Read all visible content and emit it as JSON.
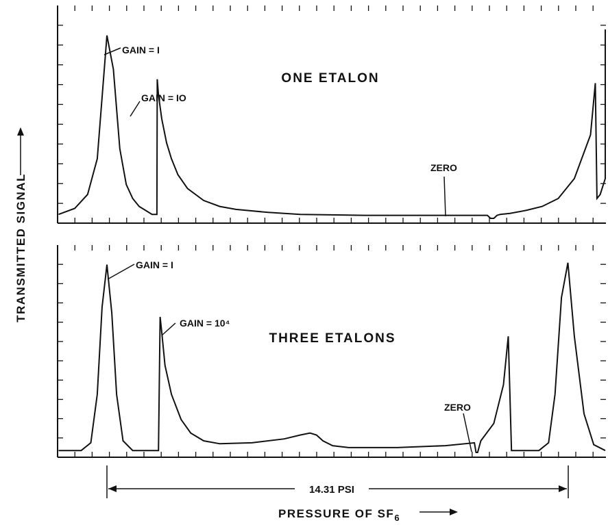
{
  "figure": {
    "ylabel": "TRANSMITTED SIGNAL",
    "xlabel_main": "PRESSURE OF SF",
    "xlabel_sub": "6",
    "span_label": "14.31 PSI"
  },
  "chart_data": [
    {
      "type": "line",
      "title": "ONE ETALON",
      "xlabel": "PRESSURE OF SF6",
      "ylabel": "TRANSMITTED SIGNAL",
      "x_unit": "PSI",
      "xlim": [
        -1.5,
        15.8
      ],
      "ylim": [
        0,
        1.05
      ],
      "grid": false,
      "annotations": [
        {
          "text": "GAIN = I",
          "x": 1.6,
          "y": 0.92
        },
        {
          "text": "GAIN = IO",
          "x": 2.6,
          "y": 0.67
        },
        {
          "text": "ZERO",
          "x": 12.0,
          "y": 0.27
        }
      ],
      "series": [
        {
          "x": [
            -1.5,
            -1.0,
            -0.6,
            -0.3,
            0.0,
            0.2,
            0.4,
            0.6,
            0.8,
            1.0,
            1.2,
            1.4,
            1.55,
            1.56,
            1.6,
            1.7,
            1.85,
            2.0,
            2.2,
            2.5,
            3.0,
            3.5,
            4.0,
            5.0,
            6.0,
            8.0,
            10.0,
            11.8,
            11.9,
            12.0,
            12.1,
            12.2,
            12.5,
            13.0,
            13.5,
            14.0,
            14.5,
            15.0,
            15.15,
            15.2,
            15.3,
            15.5,
            15.8
          ],
          "y": [
            0.02,
            0.05,
            0.12,
            0.3,
            0.92,
            0.75,
            0.35,
            0.17,
            0.1,
            0.06,
            0.04,
            0.02,
            0.02,
            0.7,
            0.62,
            0.5,
            0.38,
            0.3,
            0.22,
            0.15,
            0.09,
            0.06,
            0.045,
            0.03,
            0.02,
            0.015,
            0.015,
            0.015,
            0.0,
            0.0,
            0.015,
            0.02,
            0.025,
            0.04,
            0.06,
            0.1,
            0.2,
            0.42,
            0.68,
            0.1,
            0.12,
            0.2,
            0.45
          ]
        },
        {
          "x": [
            15.8,
            15.85,
            15.9,
            16.0
          ],
          "y": [
            0.45,
            0.72,
            0.95,
            0.62
          ]
        }
      ]
    },
    {
      "type": "line",
      "title": "THREE ETALONS",
      "xlabel": "PRESSURE OF SF6",
      "ylabel": "TRANSMITTED SIGNAL",
      "x_unit": "PSI",
      "xlim": [
        -1.5,
        15.6
      ],
      "ylim": [
        0,
        1.05
      ],
      "grid": false,
      "annotations": [
        {
          "text": "GAIN = I",
          "x": 0.0,
          "y": 0.98
        },
        {
          "text": "GAIN = 10⁴",
          "x": 1.7,
          "y": 0.7
        },
        {
          "text": "ZERO",
          "x": 11.5,
          "y": 0.18
        }
      ],
      "series": [
        {
          "x": [
            -1.5,
            -0.8,
            -0.5,
            -0.3,
            -0.15,
            0.0,
            0.15,
            0.3,
            0.5,
            0.8,
            1.0,
            1.6,
            1.65,
            1.7,
            1.8,
            2.0,
            2.3,
            2.6,
            3.0,
            3.5,
            4.5,
            5.5,
            6.0,
            6.3,
            6.5,
            6.7,
            7.0,
            7.5,
            9.0,
            10.5,
            11.4,
            11.45,
            11.5,
            11.6,
            12.0,
            12.3,
            12.45,
            12.5,
            12.55,
            13.0,
            13.4,
            13.7,
            13.9,
            14.1,
            14.3,
            14.5,
            14.8,
            15.1,
            15.6
          ],
          "y": [
            0.01,
            0.01,
            0.05,
            0.3,
            0.75,
            0.97,
            0.72,
            0.3,
            0.06,
            0.01,
            0.01,
            0.01,
            0.7,
            0.62,
            0.45,
            0.3,
            0.17,
            0.1,
            0.06,
            0.045,
            0.05,
            0.07,
            0.09,
            0.1,
            0.09,
            0.06,
            0.035,
            0.025,
            0.025,
            0.035,
            0.05,
            0.0,
            0.0,
            0.06,
            0.15,
            0.35,
            0.6,
            0.3,
            0.01,
            0.01,
            0.01,
            0.05,
            0.3,
            0.8,
            0.98,
            0.6,
            0.2,
            0.04,
            0.01
          ]
        }
      ]
    }
  ]
}
